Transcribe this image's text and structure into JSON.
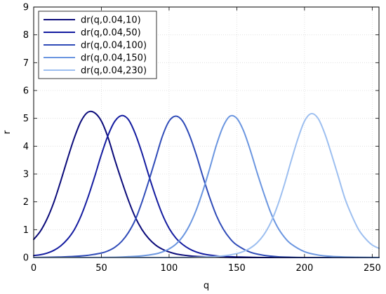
{
  "chart_data": {
    "type": "line",
    "title": "",
    "xlabel": "q",
    "ylabel": "r",
    "xlim": [
      0,
      255
    ],
    "ylim": [
      0,
      9
    ],
    "x_ticks": [
      0,
      50,
      100,
      150,
      200,
      250
    ],
    "y_ticks": [
      0,
      1,
      2,
      3,
      4,
      5,
      6,
      7,
      8,
      9
    ],
    "grid": true,
    "legend_position": "top-left",
    "series": [
      {
        "name": "dr(q,0.04,10)",
        "color": "#0b0b7a",
        "x": [
          0,
          5,
          10,
          15,
          20,
          25,
          30,
          35,
          40,
          45,
          50,
          55,
          60,
          65,
          70,
          75,
          80,
          85,
          90,
          95,
          100,
          105,
          110,
          115,
          120,
          125,
          130,
          140,
          150,
          160,
          170,
          180,
          190,
          200,
          210,
          220,
          230,
          240,
          255
        ],
        "values": [
          0.65,
          0.95,
          1.4,
          2.0,
          2.75,
          3.55,
          4.3,
          4.9,
          5.22,
          5.2,
          4.9,
          4.3,
          3.5,
          2.75,
          2.05,
          1.45,
          1.0,
          0.68,
          0.45,
          0.3,
          0.2,
          0.13,
          0.09,
          0.06,
          0.04,
          0.03,
          0.02,
          0.01,
          0.0,
          0.0,
          0.0,
          0.0,
          0.0,
          0.0,
          0.0,
          0.0,
          0.0,
          0.0,
          0.0
        ]
      },
      {
        "name": "dr(q,0.04,50)",
        "color": "#141ca0",
        "x": [
          0,
          5,
          10,
          15,
          20,
          25,
          30,
          35,
          40,
          45,
          50,
          55,
          60,
          65,
          70,
          75,
          80,
          85,
          90,
          95,
          100,
          105,
          110,
          115,
          120,
          125,
          130,
          140,
          150,
          160,
          170,
          180,
          190,
          200,
          210,
          220,
          230,
          240,
          255
        ],
        "values": [
          0.07,
          0.1,
          0.16,
          0.26,
          0.42,
          0.66,
          1.0,
          1.5,
          2.15,
          2.9,
          3.7,
          4.4,
          4.9,
          5.1,
          4.95,
          4.45,
          3.75,
          2.95,
          2.2,
          1.55,
          1.05,
          0.7,
          0.47,
          0.31,
          0.2,
          0.13,
          0.09,
          0.04,
          0.02,
          0.01,
          0.0,
          0.0,
          0.0,
          0.0,
          0.0,
          0.0,
          0.0,
          0.0,
          0.0
        ]
      },
      {
        "name": "dr(q,0.04,100)",
        "color": "#2f4bb8",
        "x": [
          0,
          10,
          20,
          30,
          40,
          50,
          55,
          60,
          65,
          70,
          75,
          80,
          85,
          90,
          95,
          100,
          105,
          110,
          115,
          120,
          125,
          130,
          135,
          140,
          145,
          150,
          160,
          170,
          180,
          190,
          200,
          210,
          220,
          230,
          240,
          255
        ],
        "values": [
          0.0,
          0.01,
          0.02,
          0.04,
          0.08,
          0.16,
          0.24,
          0.37,
          0.58,
          0.9,
          1.35,
          2.0,
          2.75,
          3.55,
          4.35,
          4.9,
          5.08,
          4.9,
          4.4,
          3.7,
          2.9,
          2.15,
          1.5,
          1.02,
          0.68,
          0.45,
          0.19,
          0.08,
          0.03,
          0.01,
          0.0,
          0.0,
          0.0,
          0.0,
          0.0,
          0.0
        ]
      },
      {
        "name": "dr(q,0.04,150)",
        "color": "#6b96e0",
        "x": [
          0,
          20,
          40,
          60,
          70,
          80,
          90,
          95,
          100,
          105,
          110,
          115,
          120,
          125,
          130,
          135,
          140,
          145,
          150,
          155,
          160,
          165,
          170,
          175,
          180,
          185,
          190,
          200,
          210,
          220,
          230,
          240,
          255
        ],
        "values": [
          0.0,
          0.0,
          0.0,
          0.01,
          0.03,
          0.06,
          0.13,
          0.2,
          0.31,
          0.48,
          0.75,
          1.15,
          1.7,
          2.4,
          3.2,
          4.05,
          4.72,
          5.08,
          5.0,
          4.55,
          3.85,
          3.05,
          2.3,
          1.62,
          1.1,
          0.74,
          0.49,
          0.21,
          0.09,
          0.04,
          0.02,
          0.01,
          0.0
        ]
      },
      {
        "name": "dr(q,0.04,230)",
        "color": "#9dbff0",
        "x": [
          0,
          50,
          100,
          120,
          130,
          140,
          150,
          155,
          160,
          165,
          170,
          175,
          180,
          185,
          190,
          195,
          200,
          205,
          210,
          215,
          220,
          225,
          230,
          235,
          240,
          245,
          250,
          255
        ],
        "values": [
          0.0,
          0.0,
          0.0,
          0.01,
          0.03,
          0.06,
          0.14,
          0.22,
          0.34,
          0.53,
          0.82,
          1.25,
          1.85,
          2.6,
          3.45,
          4.25,
          4.9,
          5.17,
          5.0,
          4.45,
          3.7,
          2.9,
          2.1,
          1.5,
          1.0,
          0.68,
          0.45,
          0.33
        ]
      }
    ]
  }
}
